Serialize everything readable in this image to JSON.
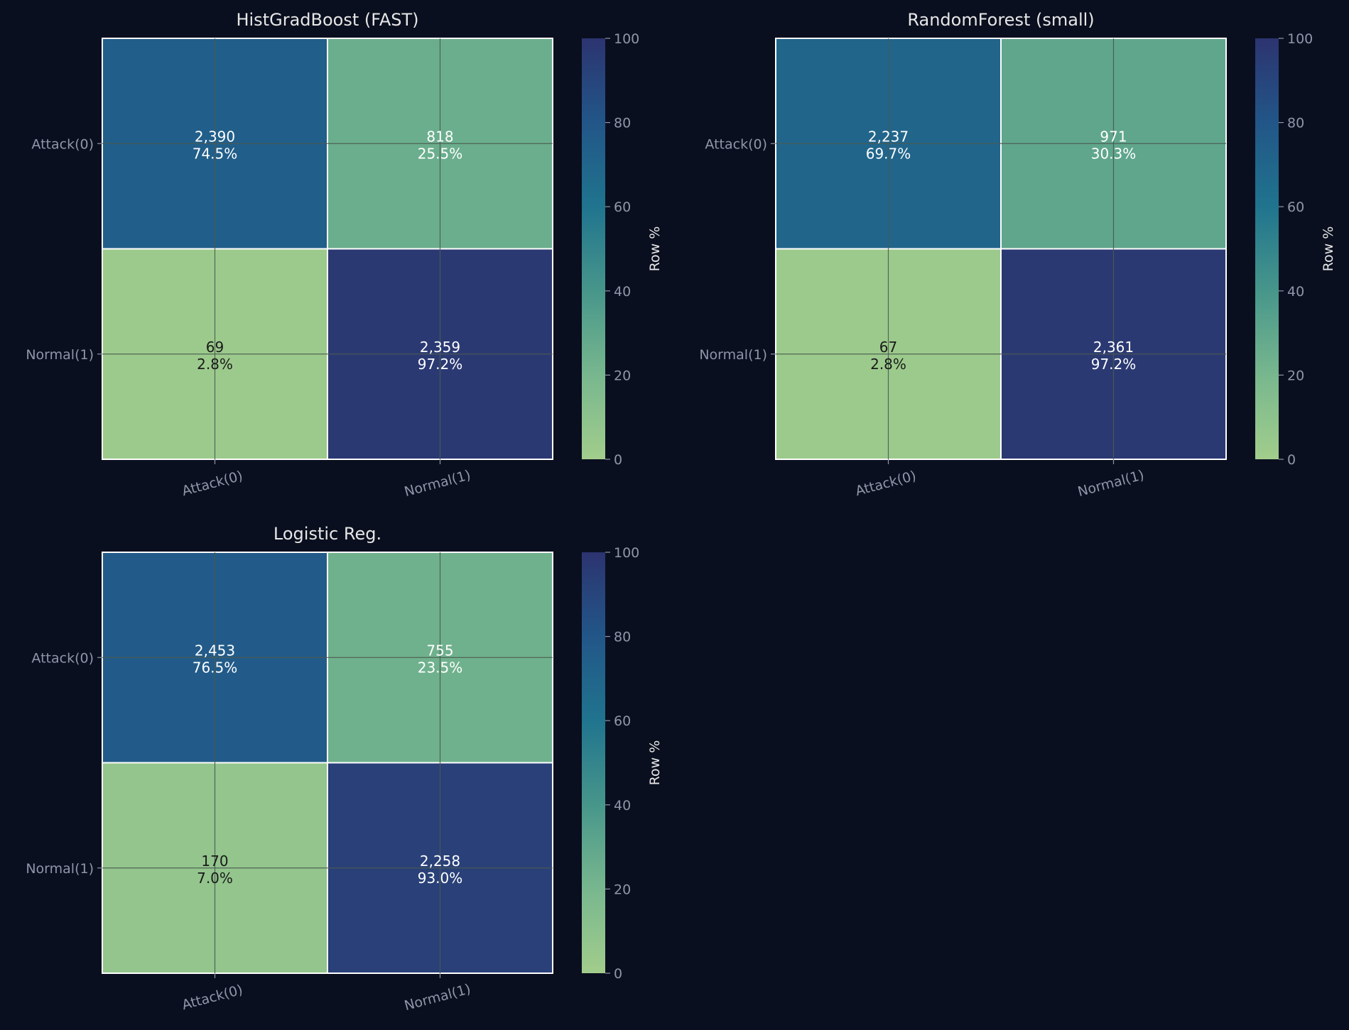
{
  "figure": {
    "background": "#0a0f1f",
    "text_color": "#e6e6e6",
    "tick_color": "#8f96a8",
    "grid_color": "#4a5a50",
    "cell_border": "#ffffff"
  },
  "chart_data": [
    {
      "type": "heatmap",
      "title": "HistGradBoost (FAST)",
      "row_labels": [
        "Attack(0)",
        "Normal(1)"
      ],
      "col_labels": [
        "Attack(0)",
        "Normal(1)"
      ],
      "counts": [
        [
          "2,390",
          "818"
        ],
        [
          "69",
          "2,359"
        ]
      ],
      "percents": [
        [
          "74.5%",
          "25.5%"
        ],
        [
          "2.8%",
          "97.2%"
        ]
      ],
      "values": [
        [
          74.5,
          25.5
        ],
        [
          2.8,
          97.2
        ]
      ],
      "colorbar": {
        "label": "Row %",
        "range": [
          0,
          100
        ],
        "ticks": [
          "0",
          "20",
          "40",
          "60",
          "80",
          "100"
        ]
      }
    },
    {
      "type": "heatmap",
      "title": "RandomForest (small)",
      "row_labels": [
        "Attack(0)",
        "Normal(1)"
      ],
      "col_labels": [
        "Attack(0)",
        "Normal(1)"
      ],
      "counts": [
        [
          "2,237",
          "971"
        ],
        [
          "67",
          "2,361"
        ]
      ],
      "percents": [
        [
          "69.7%",
          "30.3%"
        ],
        [
          "2.8%",
          "97.2%"
        ]
      ],
      "values": [
        [
          69.7,
          30.3
        ],
        [
          2.8,
          97.2
        ]
      ],
      "colorbar": {
        "label": "Row %",
        "range": [
          0,
          100
        ],
        "ticks": [
          "0",
          "20",
          "40",
          "60",
          "80",
          "100"
        ]
      }
    },
    {
      "type": "heatmap",
      "title": "Logistic Reg.",
      "row_labels": [
        "Attack(0)",
        "Normal(1)"
      ],
      "col_labels": [
        "Attack(0)",
        "Normal(1)"
      ],
      "counts": [
        [
          "2,453",
          "755"
        ],
        [
          "170",
          "2,258"
        ]
      ],
      "percents": [
        [
          "76.5%",
          "23.5%"
        ],
        [
          "7.0%",
          "93.0%"
        ]
      ],
      "values": [
        [
          76.5,
          23.5
        ],
        [
          7.0,
          93.0
        ]
      ],
      "colorbar": {
        "label": "Row %",
        "range": [
          0,
          100
        ],
        "ticks": [
          "0",
          "20",
          "40",
          "60",
          "80",
          "100"
        ]
      }
    }
  ]
}
